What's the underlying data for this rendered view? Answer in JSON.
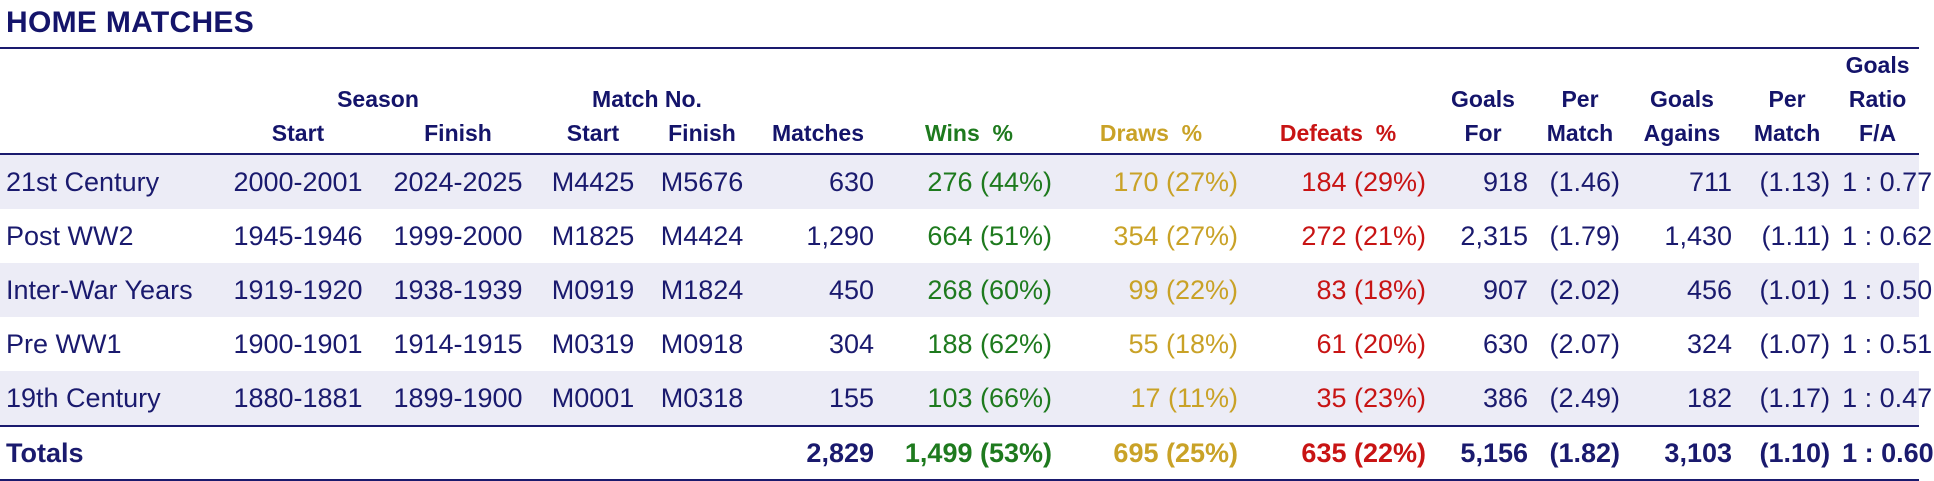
{
  "title": "HOME MATCHES",
  "headers": {
    "season": "Season",
    "match_no": "Match No.",
    "start": "Start",
    "finish": "Finish",
    "matches": "Matches",
    "wins": "Wins  %",
    "draws": "Draws  %",
    "defeats": "Defeats  %",
    "goals_for_1": "Goals",
    "goals_for_2": "For",
    "per_match_1": "Per",
    "per_match_2": "Match",
    "goals_against_1": "Goals",
    "goals_against_2": "Agains",
    "ratio_0": "Goals",
    "ratio_1": "Ratio",
    "ratio_2": "F/A"
  },
  "rows": [
    {
      "era": "21st Century",
      "season_start": "2000-2001",
      "season_finish": "2024-2025",
      "match_start": "M4425",
      "match_finish": "M5676",
      "matches": "630",
      "wins": "276 (44%)",
      "draws": "170 (27%)",
      "defeats": "184 (29%)",
      "goals_for": "918",
      "gf_per_match": "(1.46)",
      "goals_against": "711",
      "ga_per_match": "(1.13)",
      "ratio": "1 : 0.77"
    },
    {
      "era": "Post WW2",
      "season_start": "1945-1946",
      "season_finish": "1999-2000",
      "match_start": "M1825",
      "match_finish": "M4424",
      "matches": "1,290",
      "wins": "664 (51%)",
      "draws": "354 (27%)",
      "defeats": "272 (21%)",
      "goals_for": "2,315",
      "gf_per_match": "(1.79)",
      "goals_against": "1,430",
      "ga_per_match": "(1.11)",
      "ratio": "1 : 0.62"
    },
    {
      "era": "Inter-War Years",
      "season_start": "1919-1920",
      "season_finish": "1938-1939",
      "match_start": "M0919",
      "match_finish": "M1824",
      "matches": "450",
      "wins": "268 (60%)",
      "draws": "99 (22%)",
      "defeats": "83 (18%)",
      "goals_for": "907",
      "gf_per_match": "(2.02)",
      "goals_against": "456",
      "ga_per_match": "(1.01)",
      "ratio": "1 : 0.50"
    },
    {
      "era": "Pre WW1",
      "season_start": "1900-1901",
      "season_finish": "1914-1915",
      "match_start": "M0319",
      "match_finish": "M0918",
      "matches": "304",
      "wins": "188 (62%)",
      "draws": "55 (18%)",
      "defeats": "61 (20%)",
      "goals_for": "630",
      "gf_per_match": "(2.07)",
      "goals_against": "324",
      "ga_per_match": "(1.07)",
      "ratio": "1 : 0.51"
    },
    {
      "era": "19th Century",
      "season_start": "1880-1881",
      "season_finish": "1899-1900",
      "match_start": "M0001",
      "match_finish": "M0318",
      "matches": "155",
      "wins": "103 (66%)",
      "draws": "17 (11%)",
      "defeats": "35 (23%)",
      "goals_for": "386",
      "gf_per_match": "(2.49)",
      "goals_against": "182",
      "ga_per_match": "(1.17)",
      "ratio": "1 : 0.47"
    }
  ],
  "totals": {
    "label": "Totals",
    "matches": "2,829",
    "wins": "1,499 (53%)",
    "draws": "695 (25%)",
    "defeats": "635 (22%)",
    "goals_for": "5,156",
    "gf_per_match": "(1.82)",
    "goals_against": "3,103",
    "ga_per_match": "(1.10)",
    "ratio": "1 : 0.60"
  },
  "colors": {
    "text": "#1a1a6e",
    "wins": "#1e7a1e",
    "draws": "#c9a227",
    "defeats": "#c81414",
    "band": "#ececf6"
  }
}
